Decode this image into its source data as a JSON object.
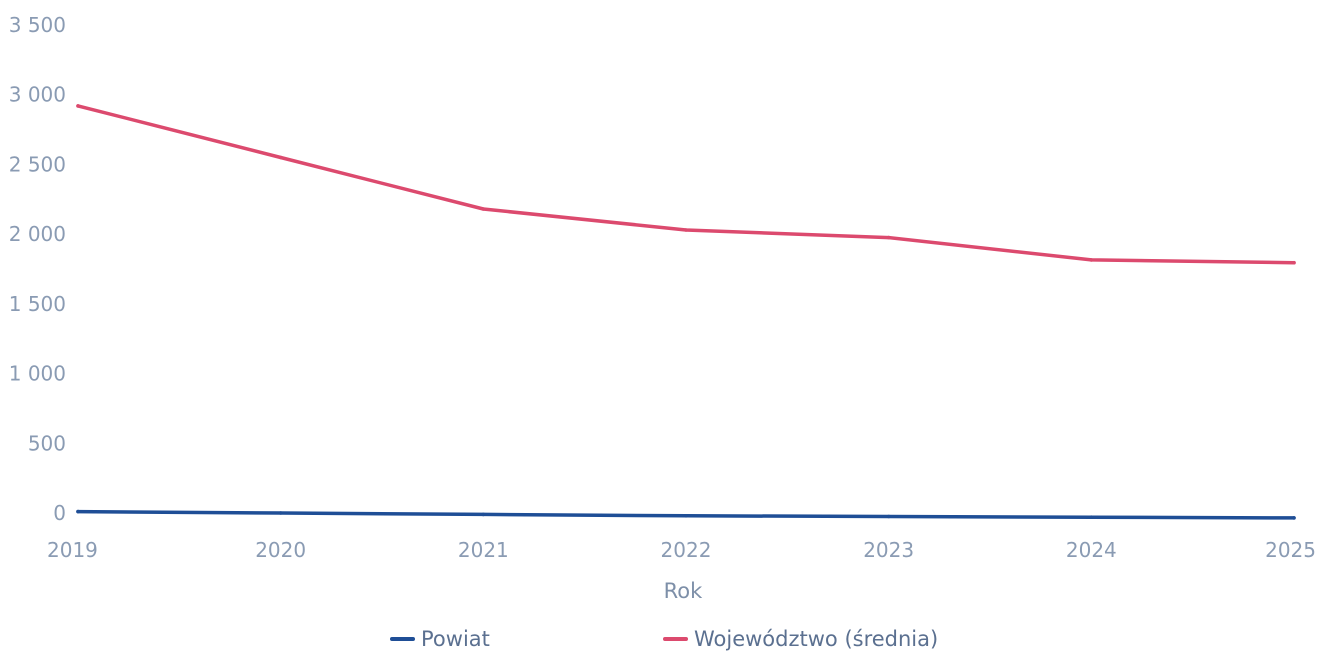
{
  "chart_data": {
    "type": "line",
    "title": "",
    "xlabel": "Rok",
    "ylabel": "",
    "x": [
      "2019",
      "2020",
      "2021",
      "2022",
      "2023",
      "2024",
      "2025"
    ],
    "y_ticks": [
      "0",
      "500",
      "1 000",
      "1 500",
      "2 000",
      "2 500",
      "3 000",
      "3 500"
    ],
    "ylim": [
      0,
      3500
    ],
    "grid": false,
    "legend_position": "bottom",
    "series": [
      {
        "name": "Powiat",
        "color": "#1f4e96",
        "values": [
          10,
          0,
          -10,
          -20,
          -25,
          -30,
          -35
        ]
      },
      {
        "name": "Województwo (średnia)",
        "color": "#dc4a6e",
        "values": [
          2920,
          2550,
          2180,
          2030,
          1975,
          1815,
          1795
        ]
      }
    ]
  }
}
